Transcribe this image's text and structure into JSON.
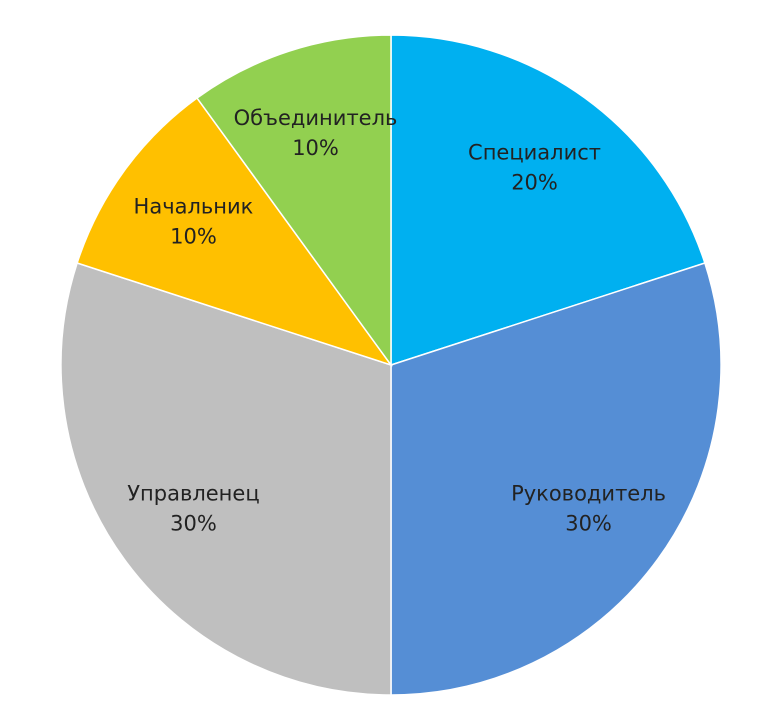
{
  "chart_data": {
    "type": "pie",
    "categories": [
      "Специалист",
      "Руководитель",
      "Управленец",
      "Начальник",
      "Объединитель"
    ],
    "values": [
      20,
      30,
      30,
      10,
      10
    ],
    "value_labels": [
      "20%",
      "30%",
      "30%",
      "10%",
      "10%"
    ],
    "colors": [
      "#00b0f0",
      "#558ed5",
      "#bfbfbf",
      "#ffc000",
      "#92d050"
    ]
  }
}
